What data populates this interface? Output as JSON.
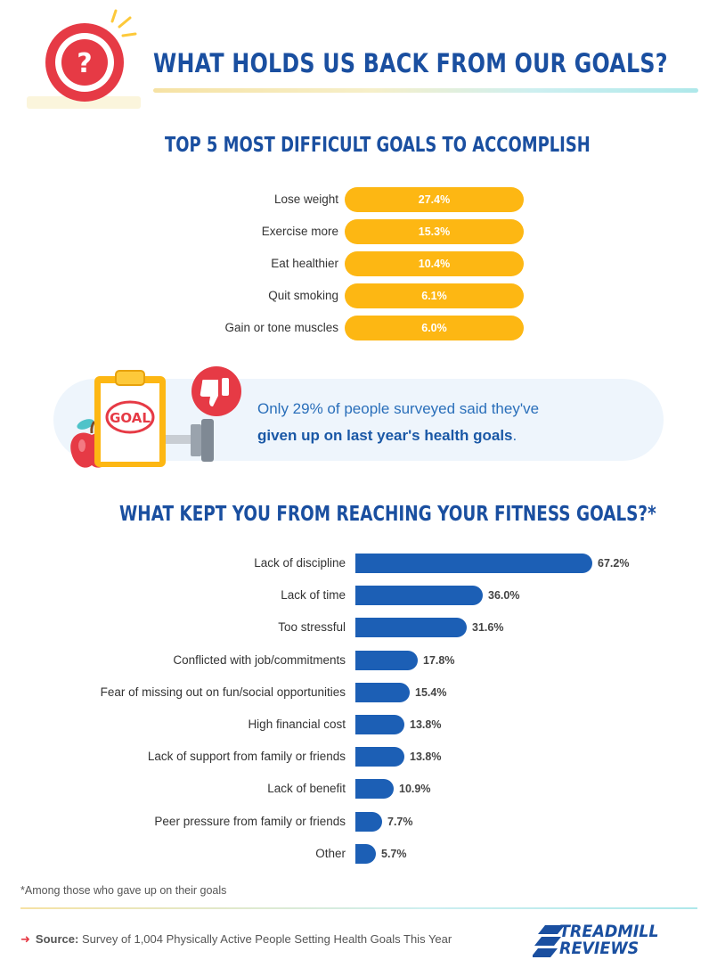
{
  "header": {
    "title": "WHAT HOLDS US BACK FROM OUR GOALS?"
  },
  "top5": {
    "title": "TOP 5 MOST DIFFICULT GOALS TO ACCOMPLISH"
  },
  "callout": {
    "text_plain": "Only 29% of people surveyed said they've",
    "text_bold": "given up on last year's health goals",
    "text_end": ".",
    "clipboard_word": "GOAL"
  },
  "fitness": {
    "title": "WHAT KEPT YOU FROM REACHING YOUR FITNESS GOALS?*"
  },
  "footer": {
    "footnote": "*Among those who gave up on their goals",
    "source_label": "Source:",
    "source_text": "Survey of 1,004 Physically Active People Setting Health Goals This Year",
    "brand_line1": "TREADMILL",
    "brand_line2": "REVIEWS"
  },
  "colors": {
    "title_blue": "#1a4fa0",
    "top5_bar": "#fdb713",
    "fitness_bar": "#1c5fb5",
    "callout_bg": "#eef5fc",
    "icon_red": "#e63a45"
  },
  "icons": [
    "question-circle-icon",
    "thumbs-down-icon",
    "clipboard-icon",
    "apple-icon",
    "dumbbell-icon",
    "arrow-right-icon",
    "brand-stripes-icon"
  ],
  "chart_data": [
    {
      "type": "bar",
      "orientation": "horizontal",
      "title": "TOP 5 MOST DIFFICULT GOALS TO ACCOMPLISH",
      "categories": [
        "Lose weight",
        "Exercise more",
        "Eat healthier",
        "Quit smoking",
        "Gain or tone muscles"
      ],
      "values": [
        27.4,
        15.3,
        10.4,
        6.1,
        6.0
      ],
      "labels": [
        "27.4%",
        "15.3%",
        "10.4%",
        "6.1%",
        "6.0%"
      ],
      "unit": "%"
    },
    {
      "type": "bar",
      "orientation": "horizontal",
      "title": "WHAT KEPT YOU FROM REACHING YOUR FITNESS GOALS?*",
      "categories": [
        "Lack of discipline",
        "Lack of time",
        "Too stressful",
        "Conflicted with job/commitments",
        "Fear of missing out on fun/social opportunities",
        "High financial cost",
        "Lack of support from family or friends",
        "Lack of benefit",
        "Peer pressure from family or friends",
        "Other"
      ],
      "values": [
        67.2,
        36.0,
        31.6,
        17.8,
        15.4,
        13.8,
        13.8,
        10.9,
        7.7,
        5.7
      ],
      "labels": [
        "67.2%",
        "36.0%",
        "31.6%",
        "17.8%",
        "15.4%",
        "13.8%",
        "13.8%",
        "10.9%",
        "7.7%",
        "5.7%"
      ],
      "unit": "%",
      "xlim": [
        0,
        67.2
      ]
    }
  ]
}
